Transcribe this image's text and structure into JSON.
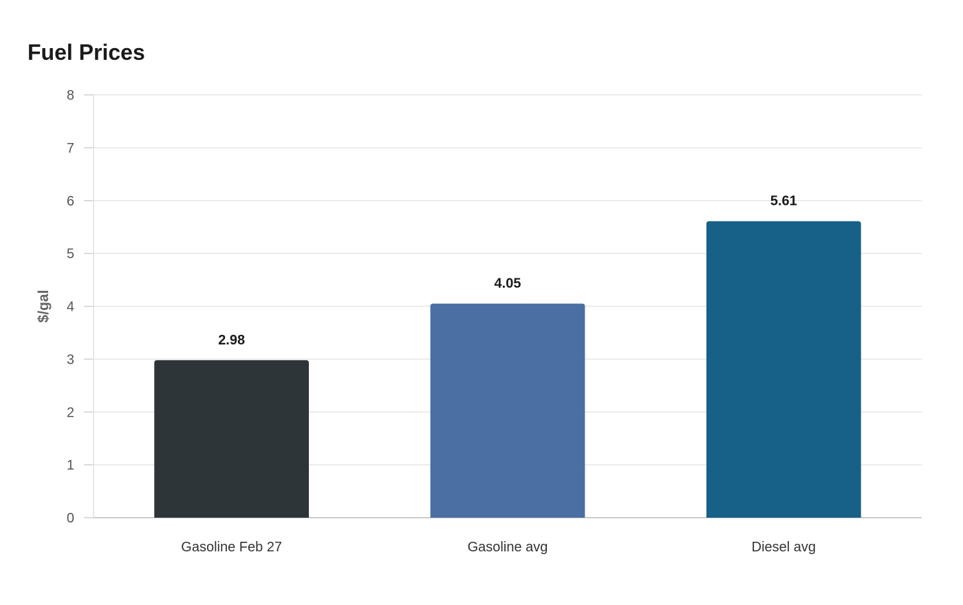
{
  "chart_data": {
    "type": "bar",
    "title": "Fuel Prices",
    "xlabel": "",
    "ylabel": "$/gal",
    "categories": [
      "Gasoline Feb 27",
      "Gasoline avg",
      "Diesel avg"
    ],
    "values": [
      2.98,
      4.05,
      5.61
    ],
    "value_labels": [
      "2.98",
      "4.05",
      "5.61"
    ],
    "colors": [
      "#2e3538",
      "#4a6fa3",
      "#176087"
    ],
    "ylim": [
      0,
      8
    ],
    "yticks": [
      0,
      1,
      2,
      3,
      4,
      5,
      6,
      7,
      8
    ],
    "grid": true,
    "legend": "none"
  }
}
